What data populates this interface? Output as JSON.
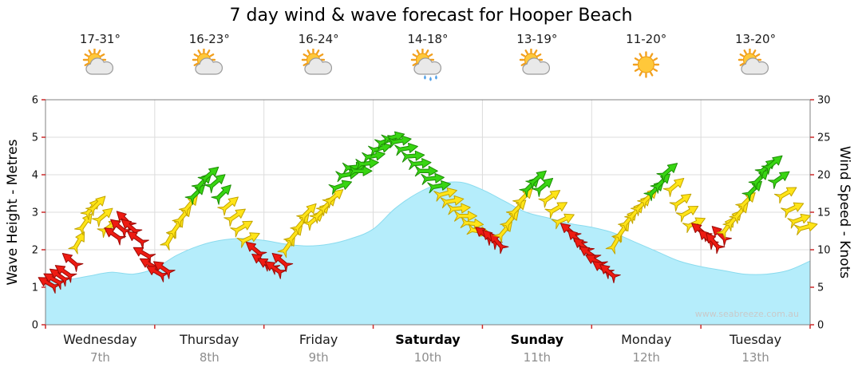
{
  "title": "7 day wind & wave forecast for Hooper Beach",
  "watermark": "www.seabreeze.com.au",
  "days": [
    {
      "name": "Wednesday",
      "date": "7th",
      "temp": "17-31°",
      "icon": "sun-cloud",
      "bold": false
    },
    {
      "name": "Thursday",
      "date": "8th",
      "temp": "16-23°",
      "icon": "sun-cloud",
      "bold": false
    },
    {
      "name": "Friday",
      "date": "9th",
      "temp": "16-24°",
      "icon": "sun-cloud",
      "bold": false
    },
    {
      "name": "Saturday",
      "date": "10th",
      "temp": "14-18°",
      "icon": "sun-cloud-rain",
      "bold": true
    },
    {
      "name": "Sunday",
      "date": "11th",
      "temp": "13-19°",
      "icon": "sun-cloud",
      "bold": true
    },
    {
      "name": "Monday",
      "date": "12th",
      "temp": "11-20°",
      "icon": "sun",
      "bold": false
    },
    {
      "name": "Tuesday",
      "date": "13th",
      "temp": "13-20°",
      "icon": "sun-cloud",
      "bold": false
    }
  ],
  "colors": {
    "grid": "#dcdcdc",
    "frame": "#808080",
    "tick": "#cc2b2b",
    "watermark": "#c9c9c9",
    "wave_fill": "#b5edfb",
    "wave_line": "#8adbee",
    "arrow": {
      "red": {
        "fill": "#ee1b12",
        "stroke": "#9c0a06"
      },
      "yellow": {
        "fill": "#ffe418",
        "stroke": "#c2a400"
      },
      "green": {
        "fill": "#38d512",
        "stroke": "#1d8d05"
      }
    }
  },
  "chart_data": {
    "type": "area+wind-arrows",
    "title": "7 day wind & wave forecast for Hooper Beach",
    "x_categories": [
      "Wednesday 7th",
      "Thursday 8th",
      "Friday 9th",
      "Saturday 10th",
      "Sunday 11th",
      "Monday 12th",
      "Tuesday 13th"
    ],
    "x_range_days": [
      0,
      7
    ],
    "grid": true,
    "y_left": {
      "label": "Wave Height - Metres",
      "range": [
        0,
        6
      ],
      "ticks": [
        0,
        1,
        2,
        3,
        4,
        5,
        6
      ]
    },
    "y_right": {
      "label": "Wind Speed - Knots",
      "range": [
        0,
        30
      ],
      "ticks": [
        0,
        5,
        10,
        15,
        20,
        25,
        30
      ]
    },
    "wave_height_m": {
      "x": [
        0,
        0.2,
        0.4,
        0.6,
        0.8,
        1.0,
        1.2,
        1.4,
        1.6,
        1.8,
        2.0,
        2.2,
        2.4,
        2.6,
        2.8,
        3.0,
        3.2,
        3.4,
        3.6,
        3.8,
        4.0,
        4.2,
        4.4,
        4.6,
        4.8,
        5.0,
        5.2,
        5.4,
        5.6,
        5.8,
        6.0,
        6.2,
        6.4,
        6.6,
        6.8,
        7.0
      ],
      "m": [
        1.15,
        1.2,
        1.3,
        1.4,
        1.35,
        1.5,
        1.85,
        2.1,
        2.25,
        2.3,
        2.25,
        2.15,
        2.1,
        2.15,
        2.3,
        2.55,
        3.1,
        3.5,
        3.75,
        3.8,
        3.6,
        3.3,
        3.0,
        2.85,
        2.7,
        2.6,
        2.45,
        2.2,
        1.95,
        1.7,
        1.55,
        1.45,
        1.35,
        1.35,
        1.45,
        1.7
      ]
    },
    "wind_knots": {
      "format": [
        "x_days",
        "knots",
        "color",
        "arrow_rotation_deg"
      ],
      "points": [
        [
          0.03,
          5.5,
          "red",
          -150
        ],
        [
          0.08,
          6,
          "red",
          -150
        ],
        [
          0.13,
          6.5,
          "red",
          -145
        ],
        [
          0.18,
          7,
          "red",
          -145
        ],
        [
          0.24,
          8.5,
          "red",
          -140
        ],
        [
          0.3,
          11,
          "yellow",
          -60
        ],
        [
          0.36,
          13.5,
          "yellow",
          -55
        ],
        [
          0.42,
          15.5,
          "yellow",
          -50
        ],
        [
          0.47,
          16,
          "yellow",
          -45
        ],
        [
          0.53,
          14.5,
          "yellow",
          -40
        ],
        [
          0.58,
          13,
          "yellow",
          -35
        ],
        [
          0.63,
          12,
          "red",
          -145
        ],
        [
          0.68,
          13,
          "red",
          -140
        ],
        [
          0.73,
          14,
          "red",
          -135
        ],
        [
          0.78,
          13,
          "red",
          -140
        ],
        [
          0.84,
          11.5,
          "red",
          -145
        ],
        [
          0.9,
          9.5,
          "red",
          -150
        ],
        [
          0.96,
          8,
          "red",
          -150
        ],
        [
          1.02,
          7,
          "red",
          -150
        ],
        [
          1.08,
          7.5,
          "red",
          -145
        ],
        [
          1.14,
          11.5,
          "yellow",
          -60
        ],
        [
          1.2,
          13,
          "yellow",
          -55
        ],
        [
          1.26,
          14.5,
          "yellow",
          -50
        ],
        [
          1.32,
          16,
          "yellow",
          -50
        ],
        [
          1.38,
          17.5,
          "green",
          -45
        ],
        [
          1.44,
          19,
          "green",
          -45
        ],
        [
          1.5,
          20,
          "green",
          -40
        ],
        [
          1.56,
          19,
          "green",
          -40
        ],
        [
          1.62,
          17.5,
          "green",
          -45
        ],
        [
          1.68,
          16,
          "yellow",
          -40
        ],
        [
          1.74,
          14.5,
          "yellow",
          -35
        ],
        [
          1.8,
          13,
          "yellow",
          -30
        ],
        [
          1.86,
          11.5,
          "yellow",
          -25
        ],
        [
          1.92,
          10,
          "red",
          -140
        ],
        [
          1.98,
          8.5,
          "red",
          -145
        ],
        [
          2.04,
          8,
          "red",
          -150
        ],
        [
          2.1,
          7.5,
          "red",
          -145
        ],
        [
          2.16,
          8.5,
          "red",
          -140
        ],
        [
          2.22,
          10.5,
          "yellow",
          -55
        ],
        [
          2.28,
          12,
          "yellow",
          -50
        ],
        [
          2.34,
          13.5,
          "yellow",
          -50
        ],
        [
          2.4,
          15,
          "yellow",
          -45
        ],
        [
          2.46,
          14,
          "yellow",
          -40
        ],
        [
          2.52,
          15,
          "yellow",
          -45
        ],
        [
          2.58,
          16,
          "yellow",
          -45
        ],
        [
          2.64,
          17,
          "yellow",
          -40
        ],
        [
          2.7,
          18.5,
          "green",
          -20
        ],
        [
          2.76,
          20,
          "green",
          -10
        ],
        [
          2.82,
          21,
          "green",
          -5
        ],
        [
          2.88,
          20.5,
          "green",
          0
        ],
        [
          2.94,
          21.5,
          "green",
          -5
        ],
        [
          3.0,
          22.5,
          "green",
          -10
        ],
        [
          3.06,
          23.5,
          "green",
          -15
        ],
        [
          3.12,
          24.5,
          "green",
          -20
        ],
        [
          3.18,
          25,
          "green",
          -15
        ],
        [
          3.24,
          24.5,
          "green",
          -10
        ],
        [
          3.3,
          23.5,
          "green",
          -10
        ],
        [
          3.36,
          22.5,
          "green",
          -5
        ],
        [
          3.42,
          21.5,
          "green",
          -5
        ],
        [
          3.48,
          20.5,
          "green",
          0
        ],
        [
          3.54,
          19.5,
          "green",
          -5
        ],
        [
          3.6,
          18.5,
          "green",
          -10
        ],
        [
          3.66,
          17.5,
          "yellow",
          -15
        ],
        [
          3.72,
          16.5,
          "yellow",
          -10
        ],
        [
          3.78,
          15.5,
          "yellow",
          -5
        ],
        [
          3.84,
          14.5,
          "yellow",
          0
        ],
        [
          3.9,
          13.5,
          "yellow",
          5
        ],
        [
          3.96,
          12.5,
          "yellow",
          10
        ],
        [
          4.02,
          12,
          "red",
          -140
        ],
        [
          4.08,
          11.5,
          "red",
          -135
        ],
        [
          4.14,
          11,
          "red",
          -130
        ],
        [
          4.2,
          12.5,
          "yellow",
          -50
        ],
        [
          4.26,
          14,
          "yellow",
          -50
        ],
        [
          4.32,
          15.5,
          "yellow",
          -45
        ],
        [
          4.38,
          17,
          "yellow",
          -45
        ],
        [
          4.44,
          18.5,
          "green",
          -45
        ],
        [
          4.5,
          19.5,
          "green",
          -40
        ],
        [
          4.56,
          18.5,
          "green",
          -40
        ],
        [
          4.62,
          17,
          "yellow",
          -35
        ],
        [
          4.68,
          15.5,
          "yellow",
          -30
        ],
        [
          4.74,
          14,
          "yellow",
          -25
        ],
        [
          4.8,
          12.5,
          "red",
          -140
        ],
        [
          4.86,
          11.5,
          "red",
          -135
        ],
        [
          4.92,
          10.5,
          "red",
          -140
        ],
        [
          4.98,
          9.5,
          "red",
          -145
        ],
        [
          5.04,
          8.5,
          "red",
          -150
        ],
        [
          5.1,
          7.5,
          "red",
          -145
        ],
        [
          5.16,
          7,
          "red",
          -140
        ],
        [
          5.22,
          11,
          "yellow",
          -60
        ],
        [
          5.28,
          12.5,
          "yellow",
          -55
        ],
        [
          5.34,
          14,
          "yellow",
          -50
        ],
        [
          5.4,
          15,
          "yellow",
          -50
        ],
        [
          5.46,
          16,
          "yellow",
          -45
        ],
        [
          5.52,
          17,
          "yellow",
          -45
        ],
        [
          5.58,
          18,
          "green",
          -45
        ],
        [
          5.64,
          19,
          "green",
          -45
        ],
        [
          5.7,
          20.5,
          "green",
          -40
        ],
        [
          5.76,
          18.5,
          "yellow",
          -40
        ],
        [
          5.82,
          16.5,
          "yellow",
          -35
        ],
        [
          5.88,
          15,
          "yellow",
          -30
        ],
        [
          5.94,
          13.5,
          "yellow",
          -25
        ],
        [
          6.0,
          12.5,
          "red",
          -140
        ],
        [
          6.06,
          11.5,
          "red",
          -135
        ],
        [
          6.12,
          11,
          "red",
          -130
        ],
        [
          6.18,
          12,
          "red",
          -135
        ],
        [
          6.24,
          13,
          "yellow",
          -55
        ],
        [
          6.3,
          14,
          "yellow",
          -50
        ],
        [
          6.36,
          15,
          "yellow",
          -50
        ],
        [
          6.42,
          16.5,
          "yellow",
          -45
        ],
        [
          6.48,
          18,
          "green",
          -45
        ],
        [
          6.54,
          19.5,
          "green",
          -45
        ],
        [
          6.6,
          21,
          "green",
          -40
        ],
        [
          6.66,
          21.5,
          "green",
          -40
        ],
        [
          6.72,
          19.5,
          "green",
          -35
        ],
        [
          6.78,
          17.5,
          "yellow",
          -30
        ],
        [
          6.84,
          15.5,
          "yellow",
          -25
        ],
        [
          6.9,
          14,
          "yellow",
          -20
        ],
        [
          6.96,
          13,
          "yellow",
          -15
        ]
      ]
    }
  }
}
